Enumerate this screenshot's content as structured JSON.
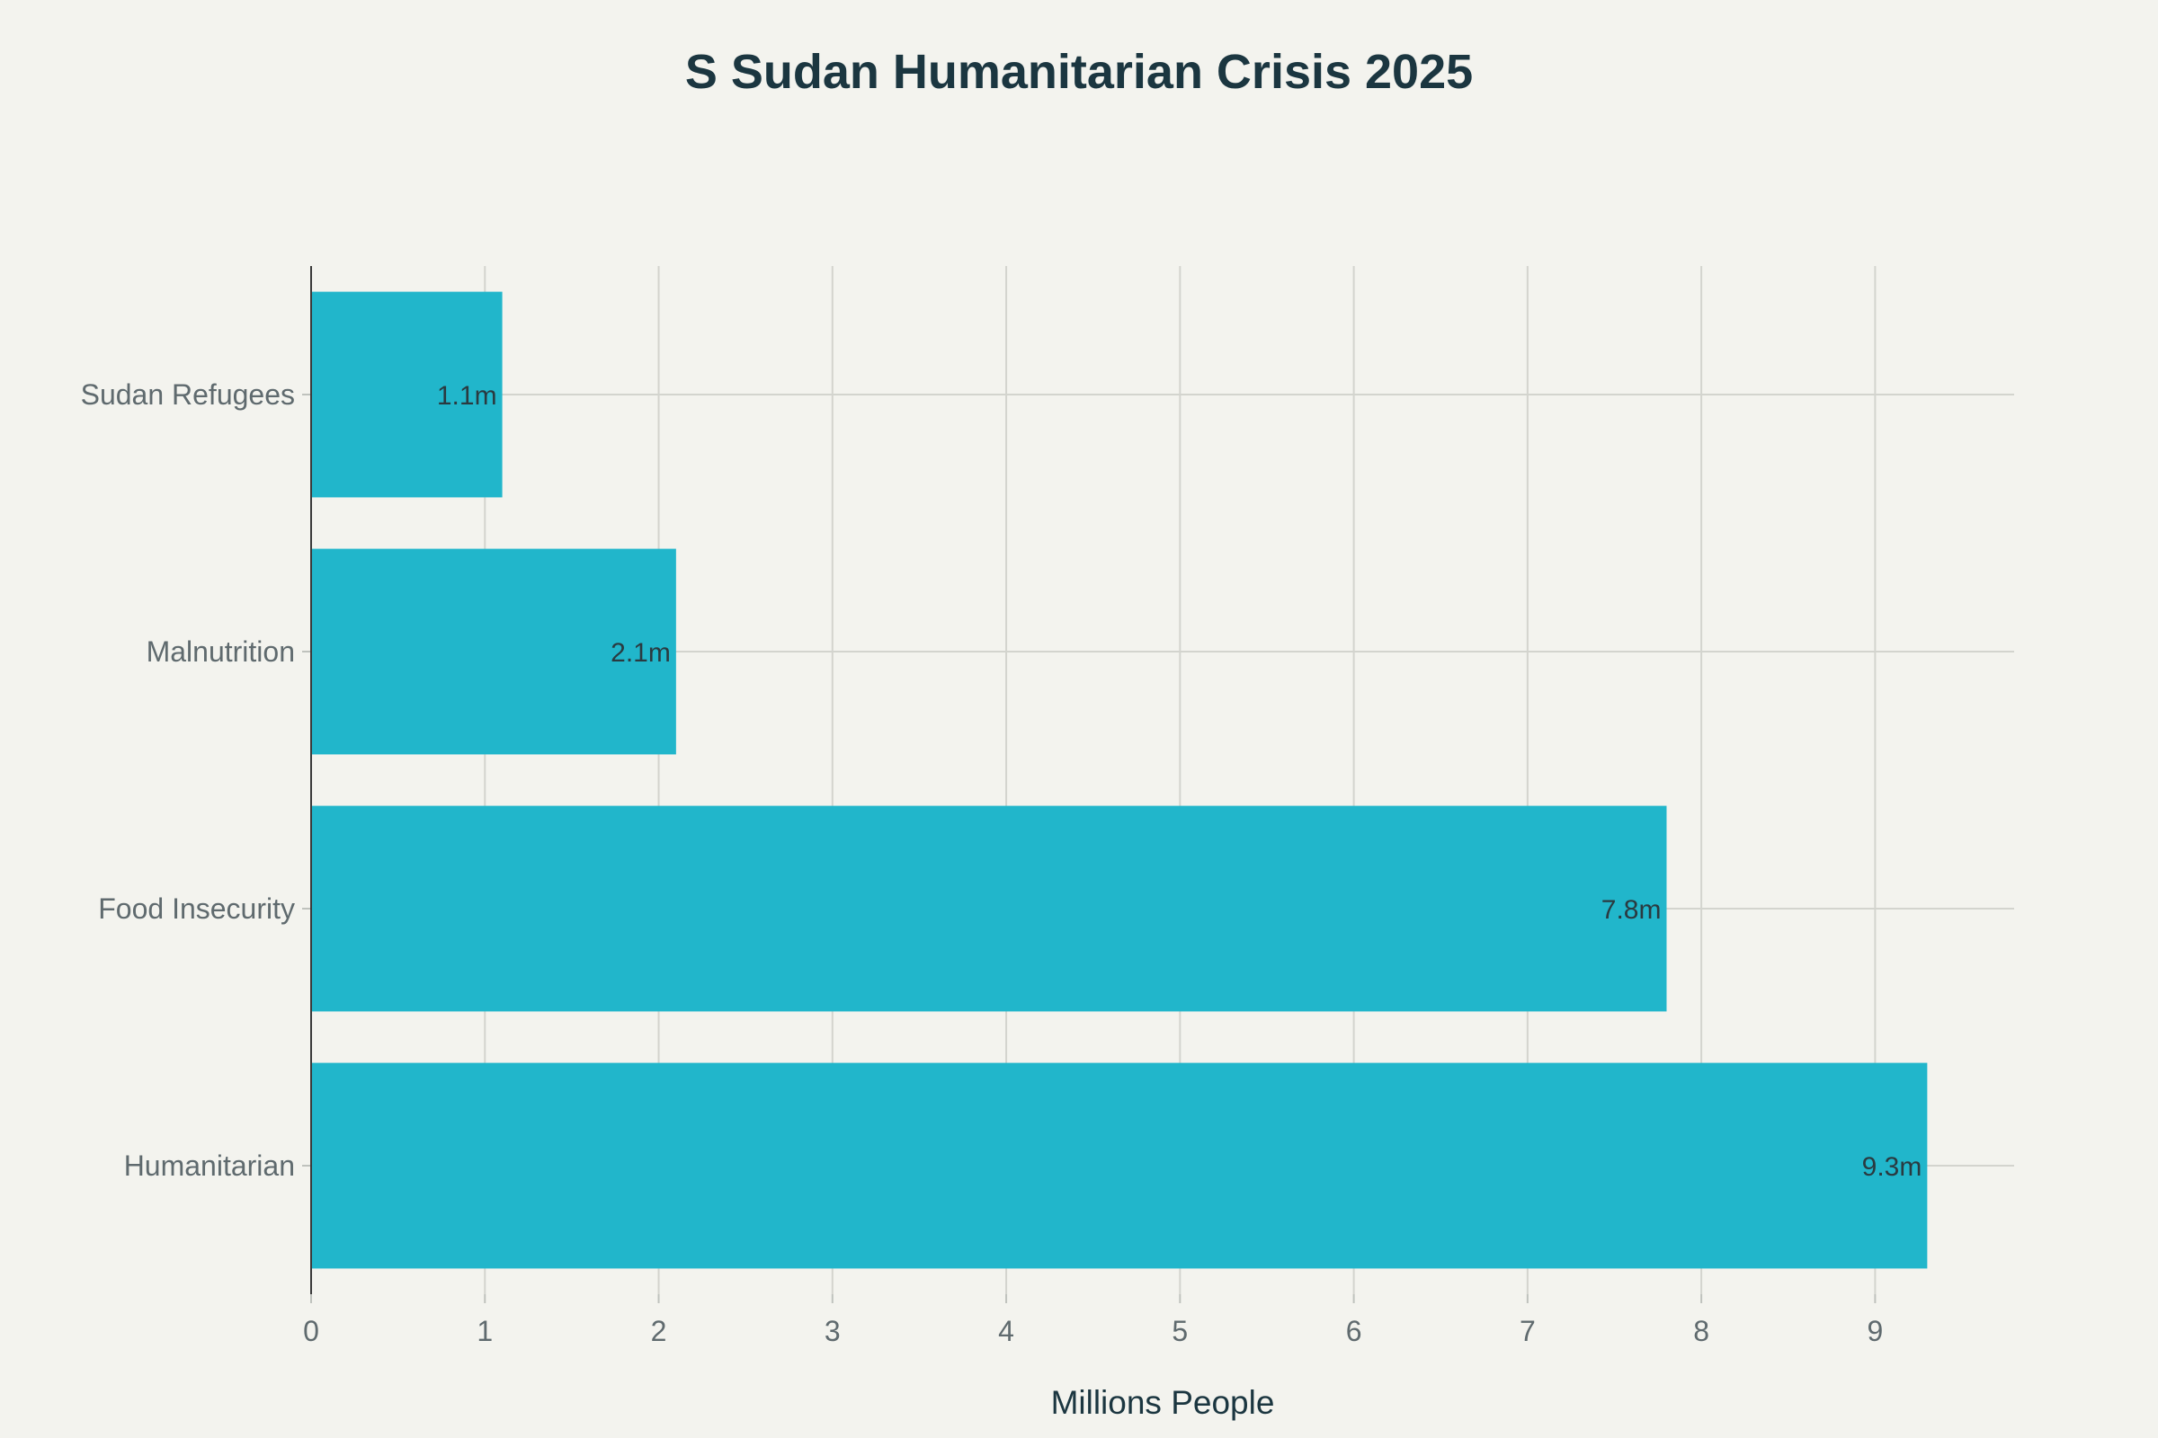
{
  "chart_data": {
    "type": "bar",
    "orientation": "horizontal",
    "title": "S Sudan Humanitarian Crisis 2025",
    "xlabel": "Millions People",
    "ylabel": "",
    "categories": [
      "Sudan Refugees",
      "Malnutrition",
      "Food Insecurity",
      "Humanitarian"
    ],
    "values": [
      1.1,
      2.1,
      7.8,
      9.3
    ],
    "data_labels": [
      "1.1m",
      "2.1m",
      "7.8m",
      "9.3m"
    ],
    "xlim": [
      0,
      9.8
    ],
    "xticks": [
      0,
      1,
      2,
      3,
      4,
      5,
      6,
      7,
      8,
      9
    ],
    "grid": true,
    "legend": "none",
    "bar_color": "#21b6cb",
    "background_color": "#f3f3ee"
  }
}
